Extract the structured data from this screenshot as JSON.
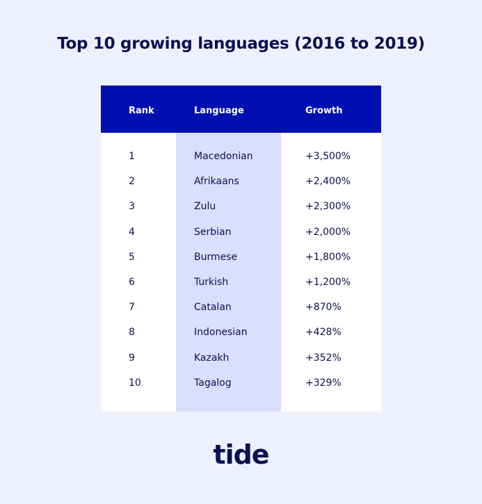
{
  "title": "Top 10 growing languages (2016 to 2019)",
  "chart_data": {
    "type": "table",
    "title": "Top 10 growing languages (2016 to 2019)",
    "columns": [
      "Rank",
      "Language",
      "Growth"
    ],
    "rows": [
      [
        "1",
        "Macedonian",
        "+3,500%"
      ],
      [
        "2",
        "Afrikaans",
        "+2,400%"
      ],
      [
        "3",
        "Zulu",
        "+2,300%"
      ],
      [
        "4",
        "Serbian",
        "+2,000%"
      ],
      [
        "5",
        "Burmese",
        "+1,800%"
      ],
      [
        "6",
        "Turkish",
        "+1,200%"
      ],
      [
        "7",
        "Catalan",
        "+870%"
      ],
      [
        "8",
        "Indonesian",
        "+428%"
      ],
      [
        "9",
        "Kazakh",
        "+352%"
      ],
      [
        "10",
        "Tagalog",
        "+329%"
      ]
    ]
  },
  "brand": "tide",
  "colors": {
    "background": "#eef0fd",
    "header": "#0010b0",
    "highlight": "#dadffd",
    "text": "#0b1150"
  }
}
